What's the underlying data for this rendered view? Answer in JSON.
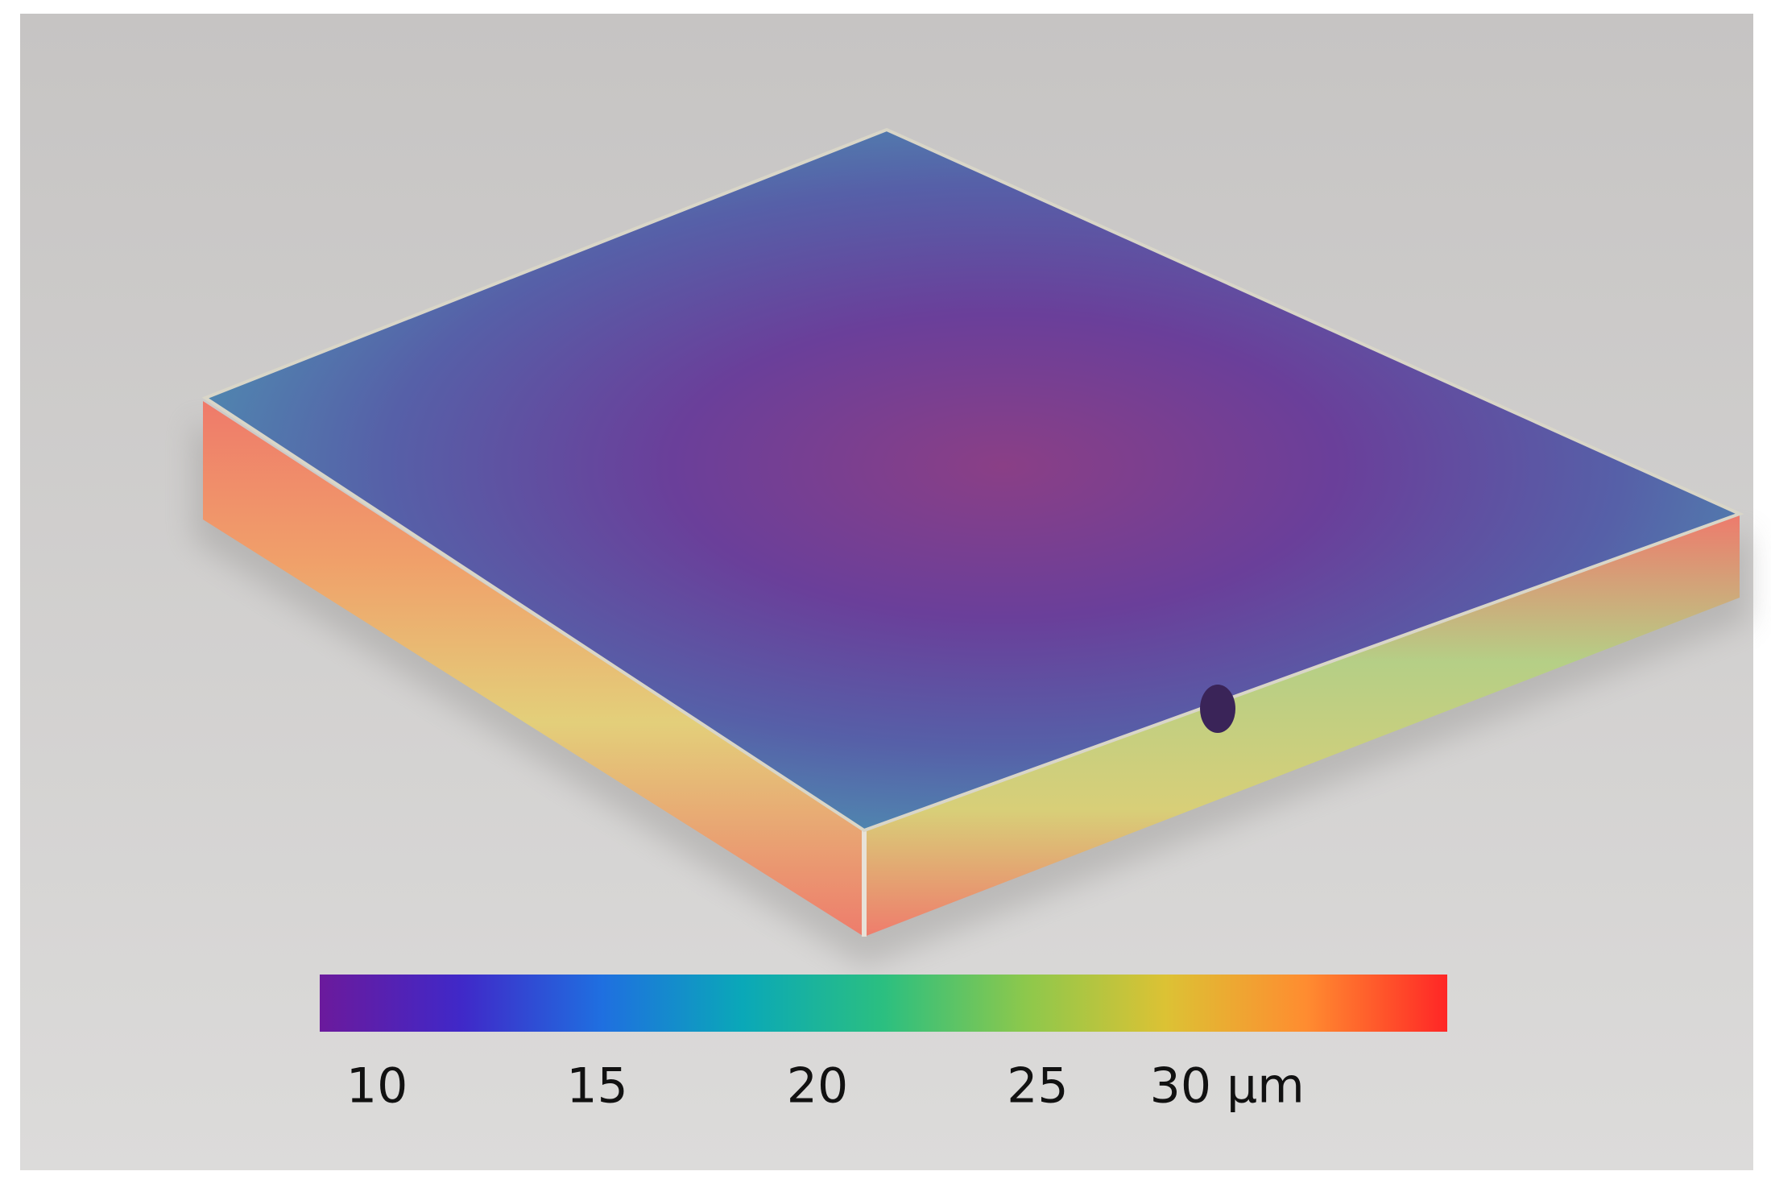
{
  "colorbar": {
    "lim": [
      8.7,
      34.3
    ],
    "ticks": [
      10,
      15,
      20,
      25,
      {
        "value": 30,
        "label": "30 μm"
      }
    ],
    "colors": [
      "#6b1a9c",
      "#4028c8",
      "#1f6fe0",
      "#0aa8b8",
      "#2bbf80",
      "#8cc84c",
      "#dcc234",
      "#ff8c30",
      "#ff2626"
    ]
  }
}
